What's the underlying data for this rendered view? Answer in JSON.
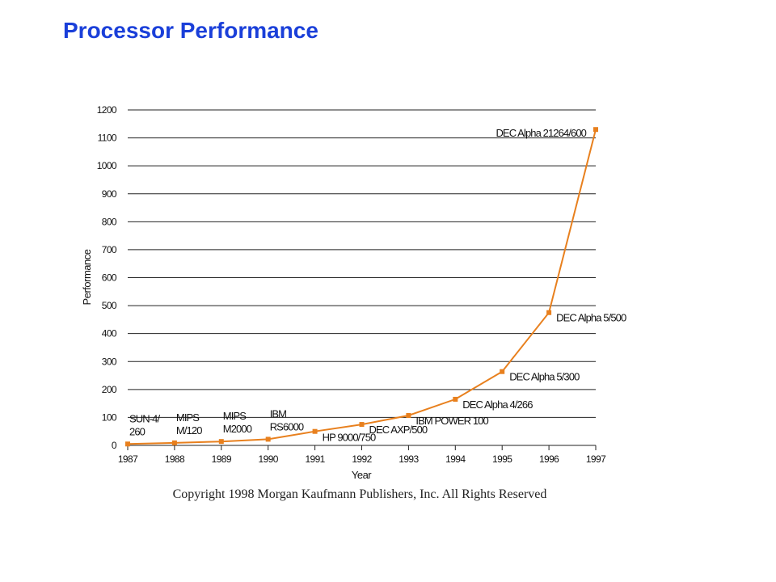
{
  "page": {
    "title": "Processor Performance",
    "copyright": "Copyright 1998 Morgan Kaufmann Publishers, Inc.  All Rights Reserved"
  },
  "chart_data": {
    "type": "line",
    "title": "",
    "xlabel": "Year",
    "ylabel": "Performance",
    "xlim": [
      1987,
      1997
    ],
    "ylim": [
      0,
      1200
    ],
    "x_ticks": [
      "1987",
      "1988",
      "1989",
      "1990",
      "1991",
      "1992",
      "1993",
      "1994",
      "1995",
      "1996",
      "1997"
    ],
    "y_ticks": [
      "0",
      "100",
      "200",
      "300",
      "400",
      "500",
      "600",
      "700",
      "800",
      "900",
      "1000",
      "1100",
      "1200"
    ],
    "grid": true,
    "line_color": "#e8801e",
    "series": [
      {
        "x": [
          1987,
          1988,
          1989,
          1990,
          1991,
          1992,
          1993,
          1994,
          1995,
          1996,
          1997
        ],
        "values": [
          5,
          9,
          14,
          22,
          50,
          75,
          107,
          165,
          264,
          475,
          1130
        ]
      }
    ],
    "annotations": [
      {
        "x": 1987,
        "y": 5,
        "lines": [
          "SUN-4/",
          "260"
        ],
        "position": "above"
      },
      {
        "x": 1988,
        "y": 9,
        "lines": [
          "MIPS",
          "M/120"
        ],
        "position": "above"
      },
      {
        "x": 1989,
        "y": 14,
        "lines": [
          "MIPS",
          "M2000"
        ],
        "position": "above"
      },
      {
        "x": 1990,
        "y": 22,
        "lines": [
          "IBM",
          "RS6000"
        ],
        "position": "above"
      },
      {
        "x": 1991,
        "y": 50,
        "lines": [
          "HP 9000/750"
        ],
        "position": "below-right"
      },
      {
        "x": 1992,
        "y": 75,
        "lines": [
          "DEC AXP/500"
        ],
        "position": "right"
      },
      {
        "x": 1993,
        "y": 107,
        "lines": [
          "IBM POWER 100"
        ],
        "position": "right"
      },
      {
        "x": 1994,
        "y": 165,
        "lines": [
          "DEC Alpha 4/266"
        ],
        "position": "right"
      },
      {
        "x": 1995,
        "y": 264,
        "lines": [
          "DEC Alpha 5/300"
        ],
        "position": "right"
      },
      {
        "x": 1996,
        "y": 475,
        "lines": [
          "DEC Alpha 5/500"
        ],
        "position": "right"
      },
      {
        "x": 1997,
        "y": 1130,
        "lines": [
          "DEC Alpha 21264/600"
        ],
        "position": "left"
      }
    ]
  }
}
